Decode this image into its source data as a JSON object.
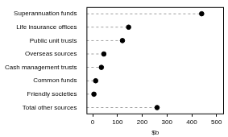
{
  "chart_data": {
    "type": "dot",
    "orientation": "horizontal",
    "categories": [
      "Superannuation funds",
      "Life insurance offices",
      "Public unit trusts",
      "Overseas sources",
      "Cash management trusts",
      "Common funds",
      "Friendly societies",
      "Total other sources"
    ],
    "values": [
      440,
      145,
      120,
      45,
      35,
      12,
      5,
      260
    ],
    "x_label": "$b",
    "xlim": [
      -25,
      530
    ],
    "xticks": [
      0,
      100,
      200,
      300,
      400,
      500
    ],
    "color": "#000000",
    "marker": "circle",
    "line_style": "dashed",
    "grid": false
  }
}
